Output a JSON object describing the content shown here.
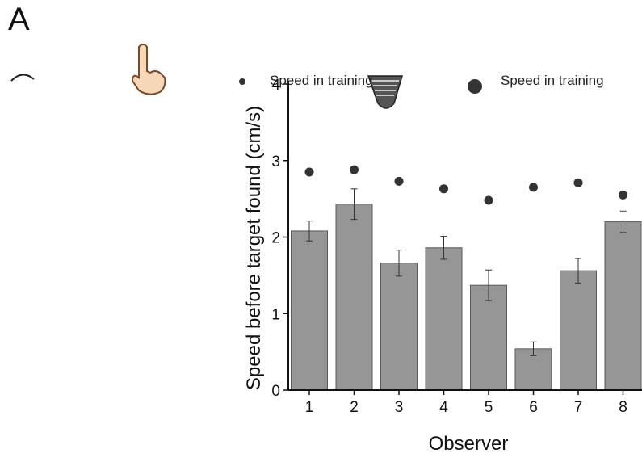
{
  "panel_label": "A",
  "colors": {
    "bar": "#969696",
    "bar_edge": "#5a5a5a",
    "dot": "#333333",
    "axis": "#111111"
  },
  "icons": [
    "hand-pointer-icon",
    "cursor-blur-icon"
  ],
  "chart_data": {
    "type": "bar",
    "xlabel": "Observer",
    "ylabel": "Speed before target found (cm/s)",
    "ylim": [
      0,
      4
    ],
    "yticks": [
      0,
      1,
      2,
      3,
      4
    ],
    "categories": [
      "1",
      "2",
      "3",
      "4",
      "5",
      "6",
      "7",
      "8"
    ],
    "series": [
      {
        "kind": "bar",
        "values": [
          2.08,
          2.43,
          1.66,
          1.86,
          1.37,
          0.54,
          1.56,
          2.2
        ],
        "errors": [
          0.13,
          0.2,
          0.17,
          0.15,
          0.2,
          0.09,
          0.16,
          0.14
        ]
      },
      {
        "kind": "dot",
        "name": "Speed in training",
        "values": [
          2.85,
          2.88,
          2.73,
          2.63,
          2.48,
          2.65,
          2.71,
          2.55
        ]
      }
    ],
    "legend": [
      "Speed in training",
      "Speed in training"
    ],
    "grid": false
  }
}
